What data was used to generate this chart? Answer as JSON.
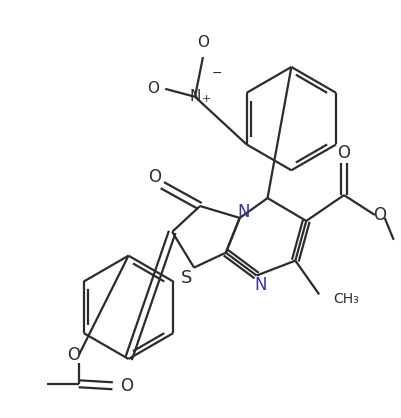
{
  "bg_color": "#ffffff",
  "line_color": "#2c2c2c",
  "line_width": 1.6,
  "figsize": [
    4.02,
    4.18
  ],
  "dpi": 100,
  "xlim": [
    0,
    402
  ],
  "ylim": [
    0,
    418
  ]
}
